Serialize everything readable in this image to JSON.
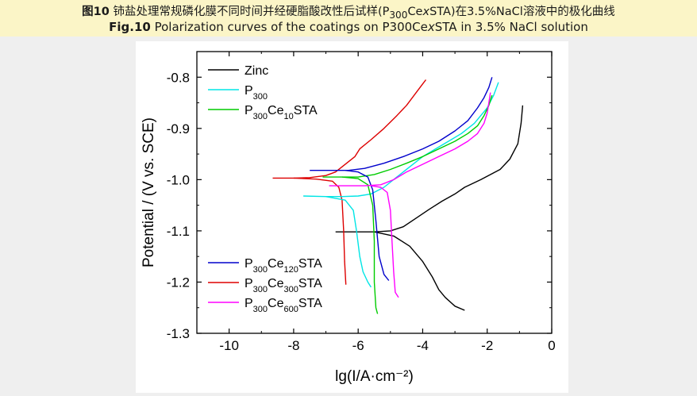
{
  "caption": {
    "cn_prefix": "图10",
    "cn_before": " 铈盐处理常规磷化膜不同时间并经硬脂酸改性后试样(P",
    "cn_sub": "300",
    "cn_mid": "Ce",
    "cn_x": "x",
    "cn_after": "STA)在3.5%NaCl溶液中的极化曲线",
    "en_prefix": "Fig.10",
    "en_before": " Polarization curves of the coatings on P300Ce",
    "en_x": "x",
    "en_after": "STA in 3.5% NaCl solution"
  },
  "chart_data": {
    "type": "line",
    "xlabel": "lg(I/A·cm⁻²)",
    "ylabel": "Potential / (V vs. SCE)",
    "xlim": [
      -11,
      0
    ],
    "ylim": [
      -1.3,
      -0.75
    ],
    "xticks": [
      "-10",
      "-8",
      "-6",
      "-4",
      "-2",
      "0"
    ],
    "yticks": [
      "-0.8",
      "-0.9",
      "-1.0",
      "-1.1",
      "-1.2",
      "-1.3"
    ],
    "legend_top": [
      {
        "name": "Zinc",
        "color": "#000000",
        "base": "Zinc",
        "sub1": "",
        "mid": "",
        "sub2": "",
        "end": ""
      },
      {
        "name": "P300",
        "color": "#00e5e5",
        "base": "P",
        "sub1": "300",
        "mid": "",
        "sub2": "",
        "end": ""
      },
      {
        "name": "P300Ce10STA",
        "color": "#00cc00",
        "base": "P",
        "sub1": "300",
        "mid": "Ce",
        "sub2": "10",
        "end": "STA"
      }
    ],
    "legend_bottom": [
      {
        "name": "P300Ce120STA",
        "color": "#0000cc",
        "base": "P",
        "sub1": "300",
        "mid": "Ce",
        "sub2": "120",
        "end": "STA"
      },
      {
        "name": "P300Ce300STA",
        "color": "#dd0000",
        "base": "P",
        "sub1": "300",
        "mid": "Ce",
        "sub2": "300",
        "end": "STA"
      },
      {
        "name": "P300Ce600STA",
        "color": "#ff00ff",
        "base": "P",
        "sub1": "300",
        "mid": "Ce",
        "sub2": "600",
        "end": "STA"
      }
    ],
    "series": [
      {
        "name": "Zinc",
        "color": "#000000",
        "x": [
          -6.7,
          -5.5,
          -5.0,
          -4.6,
          -4.2,
          -3.8,
          -3.4,
          -3.0,
          -2.7,
          -2.2,
          -1.6,
          -1.3,
          -1.05,
          -0.95,
          -0.9
        ],
        "y": [
          -1.102,
          -1.102,
          -1.1,
          -1.092,
          -1.075,
          -1.058,
          -1.042,
          -1.028,
          -1.015,
          -1.0,
          -0.98,
          -0.96,
          -0.93,
          -0.89,
          -0.855
        ]
      },
      {
        "name": "Zinc-cathodic",
        "color": "#000000",
        "x": [
          -5.5,
          -4.9,
          -4.4,
          -4.0,
          -3.7,
          -3.5,
          -3.3,
          -3.0,
          -2.7
        ],
        "y": [
          -1.102,
          -1.11,
          -1.13,
          -1.16,
          -1.19,
          -1.215,
          -1.23,
          -1.247,
          -1.255
        ]
      },
      {
        "name": "P300Ce300STA",
        "color": "#dd0000",
        "x": [
          -8.65,
          -8.0,
          -7.5,
          -7.0,
          -6.7,
          -6.5,
          -6.1,
          -5.95,
          -5.6,
          -5.2,
          -4.8,
          -4.5,
          -4.2,
          -4.0,
          -3.9
        ],
        "y": [
          -0.997,
          -0.997,
          -0.996,
          -0.992,
          -0.985,
          -0.975,
          -0.955,
          -0.94,
          -0.922,
          -0.9,
          -0.875,
          -0.855,
          -0.83,
          -0.813,
          -0.805
        ]
      },
      {
        "name": "P300Ce300STA-cathodic",
        "color": "#dd0000",
        "x": [
          -8.0,
          -7.3,
          -6.8,
          -6.6,
          -6.5,
          -6.45,
          -6.42,
          -6.38
        ],
        "y": [
          -0.997,
          -0.999,
          -1.003,
          -1.015,
          -1.04,
          -1.1,
          -1.16,
          -1.205
        ]
      },
      {
        "name": "P300",
        "color": "#00e5e5",
        "x": [
          -7.7,
          -7.0,
          -6.5,
          -6.0,
          -5.6,
          -5.2,
          -4.8,
          -4.4,
          -4.0,
          -3.6,
          -3.2,
          -2.8,
          -2.4,
          -2.0,
          -1.8,
          -1.65
        ],
        "y": [
          -1.032,
          -1.033,
          -1.033,
          -1.032,
          -1.028,
          -1.015,
          -0.995,
          -0.975,
          -0.955,
          -0.94,
          -0.925,
          -0.91,
          -0.89,
          -0.86,
          -0.835,
          -0.81
        ]
      },
      {
        "name": "P300-cathodic",
        "color": "#00e5e5",
        "x": [
          -7.0,
          -6.4,
          -6.15,
          -6.05,
          -5.95,
          -5.85,
          -5.7,
          -5.6
        ],
        "y": [
          -1.033,
          -1.04,
          -1.06,
          -1.1,
          -1.15,
          -1.18,
          -1.2,
          -1.21
        ]
      },
      {
        "name": "P300Ce10STA",
        "color": "#00cc00",
        "x": [
          -7.1,
          -6.5,
          -6.0,
          -5.5,
          -5.0,
          -4.5,
          -4.0,
          -3.5,
          -3.0,
          -2.6,
          -2.3,
          -2.1,
          -1.95,
          -1.85
        ],
        "y": [
          -0.995,
          -0.995,
          -0.995,
          -0.99,
          -0.98,
          -0.968,
          -0.955,
          -0.94,
          -0.925,
          -0.91,
          -0.895,
          -0.875,
          -0.855,
          -0.835
        ]
      },
      {
        "name": "P300Ce10STA-cathodic",
        "color": "#00cc00",
        "x": [
          -6.5,
          -6.0,
          -5.7,
          -5.55,
          -5.5,
          -5.5,
          -5.45,
          -5.4
        ],
        "y": [
          -0.995,
          -0.998,
          -1.01,
          -1.05,
          -1.12,
          -1.2,
          -1.25,
          -1.262
        ]
      },
      {
        "name": "P300Ce120STA",
        "color": "#0000cc",
        "x": [
          -7.5,
          -6.8,
          -6.3,
          -5.8,
          -5.2,
          -4.6,
          -4.0,
          -3.5,
          -3.0,
          -2.6,
          -2.3,
          -2.1,
          -1.95,
          -1.85
        ],
        "y": [
          -0.982,
          -0.982,
          -0.982,
          -0.978,
          -0.968,
          -0.955,
          -0.94,
          -0.925,
          -0.905,
          -0.885,
          -0.86,
          -0.84,
          -0.82,
          -0.8
        ]
      },
      {
        "name": "P300Ce120STA-cathodic",
        "color": "#0000cc",
        "x": [
          -6.4,
          -6.0,
          -5.7,
          -5.55,
          -5.45,
          -5.35,
          -5.2,
          -5.05
        ],
        "y": [
          -0.982,
          -0.985,
          -0.995,
          -1.02,
          -1.08,
          -1.15,
          -1.185,
          -1.197
        ]
      },
      {
        "name": "P300Ce600STA",
        "color": "#ff00ff",
        "x": [
          -6.9,
          -6.3,
          -5.8,
          -5.3,
          -4.9,
          -4.5,
          -4.0,
          -3.5,
          -3.0,
          -2.6,
          -2.3,
          -2.1,
          -2.0,
          -1.95,
          -1.9
        ],
        "y": [
          -1.012,
          -1.012,
          -1.012,
          -1.01,
          -1.0,
          -0.985,
          -0.97,
          -0.955,
          -0.94,
          -0.925,
          -0.91,
          -0.89,
          -0.87,
          -0.85,
          -0.83
        ]
      },
      {
        "name": "P300Ce600STA-cathodic",
        "color": "#ff00ff",
        "x": [
          -5.6,
          -5.3,
          -5.1,
          -5.0,
          -4.95,
          -4.9,
          -4.85,
          -4.75
        ],
        "y": [
          -1.012,
          -1.015,
          -1.025,
          -1.06,
          -1.12,
          -1.18,
          -1.22,
          -1.23
        ]
      }
    ]
  }
}
